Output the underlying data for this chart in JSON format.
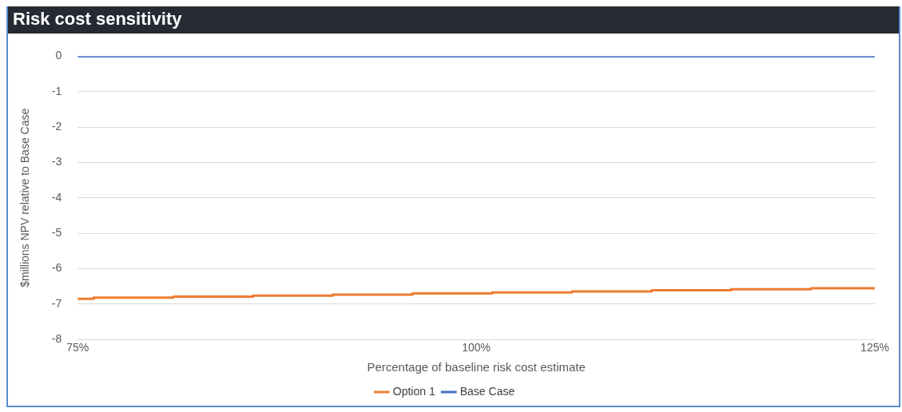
{
  "chart_data": {
    "type": "line",
    "title": "Risk cost sensitivity",
    "xlabel": "Percentage of baseline risk cost estimate",
    "ylabel": "$millions NPV relative to Base Case",
    "xlim": [
      75,
      125
    ],
    "xticks": [
      {
        "value": 75,
        "label": "75%"
      },
      {
        "value": 100,
        "label": "100%"
      },
      {
        "value": 125,
        "label": "125%"
      }
    ],
    "ylim": [
      -8,
      0
    ],
    "yticks": [
      -8,
      -7,
      -6,
      -5,
      -4,
      -3,
      -2,
      -1,
      0
    ],
    "grid": "y",
    "legend": "bottom",
    "marker": "none",
    "series": [
      {
        "name": "Option 1",
        "color": "#ed7d31",
        "type": "step",
        "x": [
          75,
          76,
          81,
          86,
          91,
          96,
          101,
          106,
          111,
          116,
          121,
          125
        ],
        "values": [
          -6.85,
          -6.82,
          -6.79,
          -6.76,
          -6.73,
          -6.7,
          -6.67,
          -6.64,
          -6.61,
          -6.58,
          -6.55,
          -6.55
        ]
      },
      {
        "name": "Base Case",
        "color": "#4472c4",
        "x": [
          75,
          125
        ],
        "values": [
          0,
          0
        ]
      }
    ]
  }
}
